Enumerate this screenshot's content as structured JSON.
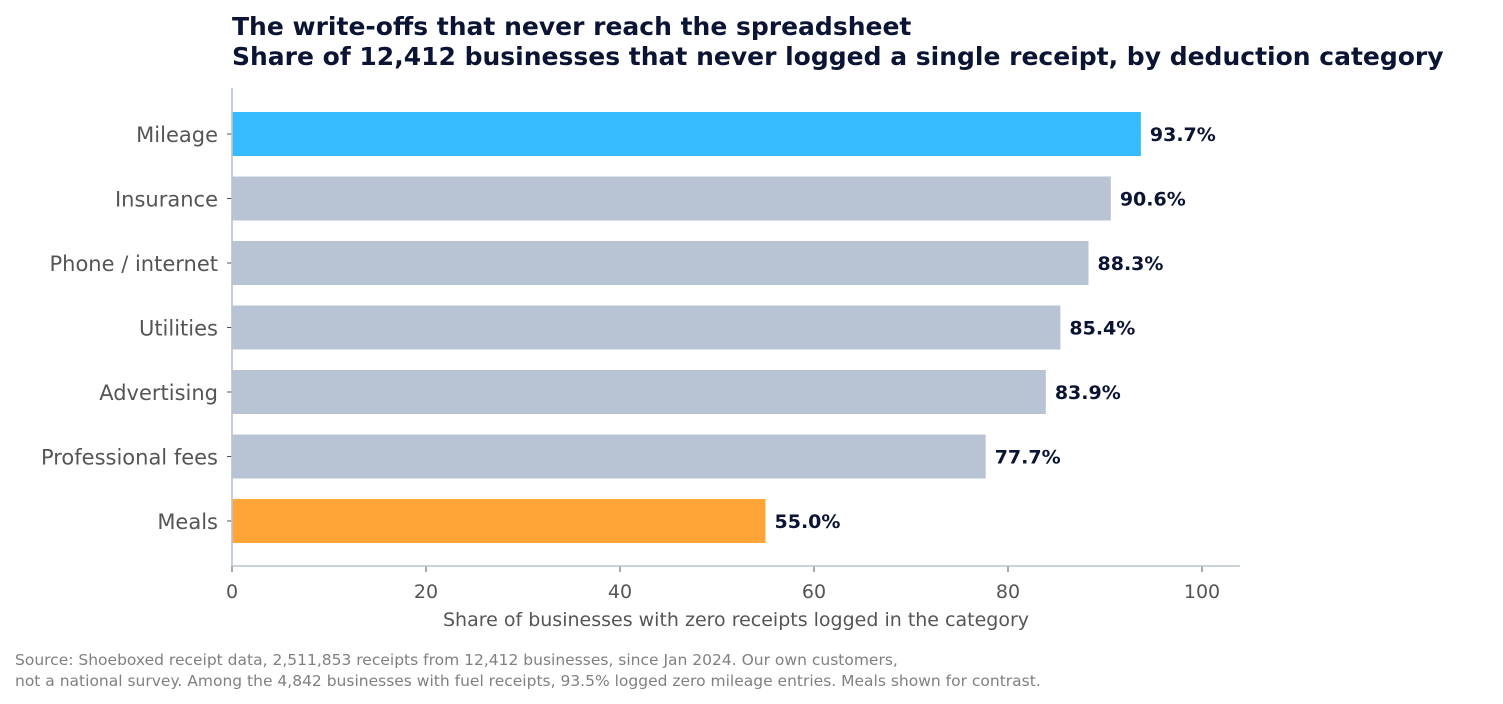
{
  "chart_data": {
    "type": "bar",
    "orientation": "horizontal",
    "title": "The write-offs that never reach the spreadsheet",
    "subtitle": "Share of 12,412 businesses that never logged a single receipt, by deduction category",
    "xlabel": "Share of businesses with zero receipts logged in the category",
    "ylabel": "",
    "categories": [
      "Mileage",
      "Insurance",
      "Phone / internet",
      "Utilities",
      "Advertising",
      "Professional fees",
      "Meals"
    ],
    "values": [
      93.7,
      90.6,
      88.3,
      85.4,
      83.9,
      77.7,
      55.0
    ],
    "data_labels": [
      "93.7%",
      "90.6%",
      "88.3%",
      "85.4%",
      "83.9%",
      "77.7%",
      "55.0%"
    ],
    "bar_colors": [
      "#36bbff",
      "#b8c4d4",
      "#b8c4d4",
      "#b8c4d4",
      "#b8c4d4",
      "#b8c4d4",
      "#ffa436"
    ],
    "xlim": [
      0,
      104
    ],
    "xticks": [
      0,
      20,
      40,
      60,
      80,
      100
    ],
    "xtick_labels": [
      "0",
      "20",
      "40",
      "60",
      "80",
      "100"
    ],
    "grid": false,
    "legend": "none"
  },
  "source_note": {
    "line1": "Source: Shoeboxed receipt data, 2,511,853 receipts from 12,412 businesses, since Jan 2024. Our own customers,",
    "line2": "not a national survey. Among the 4,842 businesses with fuel receipts, 93.5% logged zero mileage entries. Meals shown for contrast."
  },
  "colors": {
    "highlight": "#36bbff",
    "contrast": "#ffa436",
    "neutral": "#b8c4d4",
    "axis": "#b9c3ce",
    "title": "#0b1533"
  }
}
